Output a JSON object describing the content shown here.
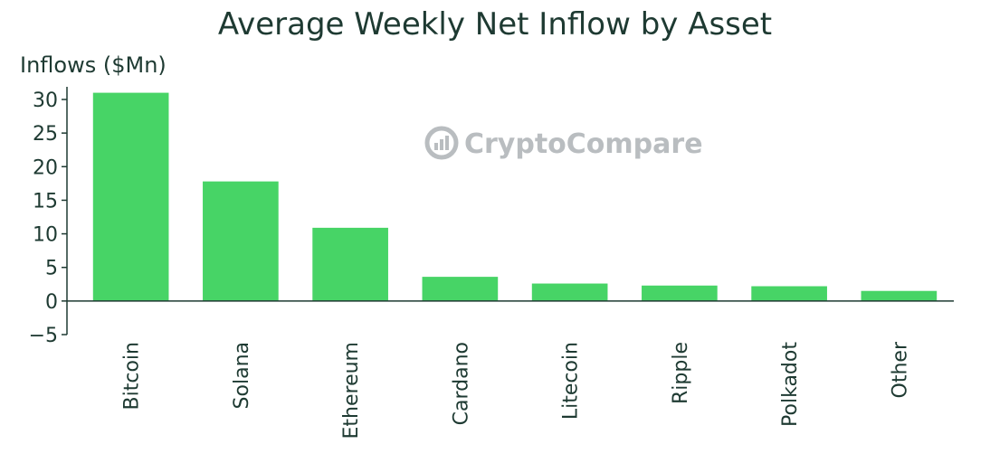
{
  "chart_data": {
    "type": "bar",
    "title": "Average Weekly Net Inflow by Asset",
    "ylabel": "Inflows ($Mn)",
    "xlabel": "",
    "categories": [
      "Bitcoin",
      "Solana",
      "Ethereum",
      "Cardano",
      "Litecoin",
      "Ripple",
      "Polkadot",
      "Other"
    ],
    "values": [
      31,
      17.8,
      10.9,
      3.6,
      2.6,
      2.3,
      2.2,
      1.5
    ],
    "ylim": [
      -5,
      30
    ],
    "yticks": [
      "−5",
      "0",
      "5",
      "10",
      "15",
      "20",
      "25",
      "30"
    ],
    "grid": false,
    "bar_color": "#47d466",
    "axis_color": "#1e3a32"
  },
  "watermark": {
    "text": "CryptoCompare",
    "icon": "cryptocompare-logo-icon",
    "color": "#b9bdc0"
  }
}
